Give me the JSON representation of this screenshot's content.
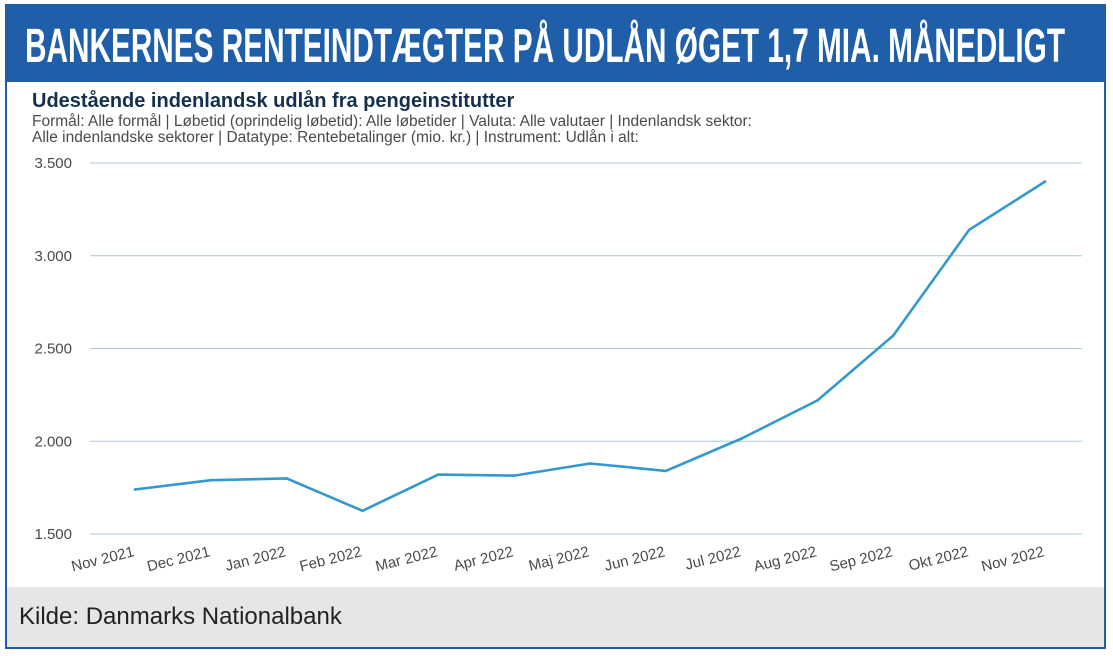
{
  "banner": {
    "title": "BANKERNES RENTEINDTÆGTER PÅ UDLÅN ØGET 1,7 MIA. MÅNEDLIGT",
    "background": "#1f5ea8"
  },
  "chart_data": {
    "type": "line",
    "title": "Udestående indenlandsk udlån fra pengeinstitutter",
    "subtitle_lines": [
      "Formål: Alle formål | Løbetid (oprindelig løbetid): Alle løbetider | Valuta: Alle valutaer | Indenlandsk sektor:",
      "Alle indenlandske sektorer | Datatype: Rentebetalinger (mio. kr.) | Instrument: Udlån i alt:"
    ],
    "categories": [
      "Nov 2021",
      "Dec 2021",
      "Jan 2022",
      "Feb 2022",
      "Mar 2022",
      "Apr 2022",
      "Maj 2022",
      "Jun 2022",
      "Jul 2022",
      "Aug 2022",
      "Sep 2022",
      "Okt 2022",
      "Nov 2022"
    ],
    "series": [
      {
        "name": "Rentebetalinger",
        "values": [
          1740,
          1790,
          1800,
          1625,
          1820,
          1815,
          1880,
          1840,
          2015,
          2220,
          2570,
          3140,
          3400
        ]
      }
    ],
    "yticks": [
      1500,
      2000,
      2500,
      3000,
      3500
    ],
    "ytick_labels": [
      "1.500",
      "2.000",
      "2.500",
      "3.000",
      "3.500"
    ],
    "ylim": [
      1500,
      3500
    ],
    "xlabel": "",
    "ylabel": "",
    "grid": true,
    "line_color": "#3399cc",
    "grid_color": "#a9c8d6"
  },
  "footer": {
    "source": "Kilde: Danmarks Nationalbank"
  }
}
